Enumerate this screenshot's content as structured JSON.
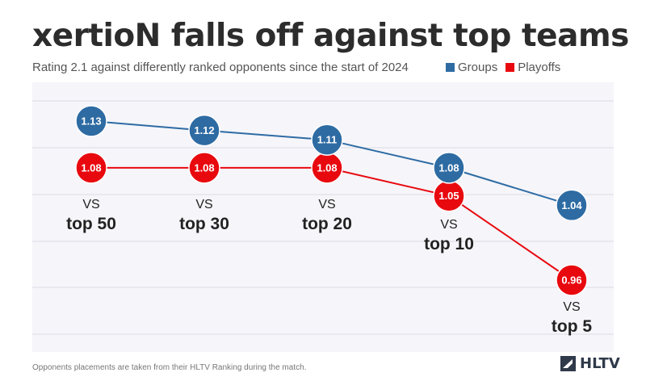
{
  "title": "xertioN falls off against top teams",
  "subtitle": "Rating 2.1 against differently ranked opponents since the start of 2024",
  "legend": [
    {
      "label": "Groups",
      "color": "#2e6ba3"
    },
    {
      "label": "Playoffs",
      "color": "#e8090f"
    }
  ],
  "footer": "Opponents placements are taken from their HLTV Ranking  during the match.",
  "brand": "HLTV",
  "chart_data": {
    "type": "line",
    "categories": [
      "vs top 50",
      "vs top 30",
      "vs top 20",
      "vs top 10",
      "vs top 5"
    ],
    "category_lines": [
      [
        "VS",
        "top 50"
      ],
      [
        "VS",
        "top 30"
      ],
      [
        "VS",
        "top 20"
      ],
      [
        "VS",
        "top 10"
      ],
      [
        "VS",
        "top 5"
      ]
    ],
    "series": [
      {
        "name": "Groups",
        "color": "#2e6ba3",
        "values": [
          1.13,
          1.12,
          1.11,
          1.08,
          1.04
        ],
        "labels": [
          "1.13",
          "1.12",
          "1.11",
          "1.08",
          "1.04"
        ]
      },
      {
        "name": "Playoffs",
        "color": "#e8090f",
        "values": [
          1.08,
          1.08,
          1.08,
          1.05,
          0.96
        ],
        "labels": [
          "1.08",
          "1.08",
          "1.08",
          "1.05",
          "0.96"
        ]
      }
    ],
    "ylim": [
      0.9,
      1.16
    ],
    "grid": true
  }
}
